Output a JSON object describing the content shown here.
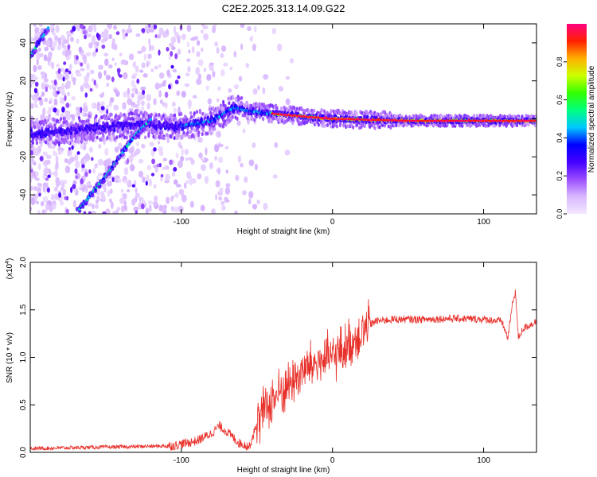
{
  "figure": {
    "title": "C2E2.2025.313.14.09.G22"
  },
  "chart_data": [
    {
      "type": "heatmap",
      "name": "spectrogram",
      "xlabel": "Height of straight line (km)",
      "ylabel": "Frequency (Hz)",
      "xlim": [
        -200,
        135
      ],
      "ylim": [
        -50,
        50
      ],
      "xticks": [
        -100,
        0,
        100
      ],
      "xtick_labels": [
        "-100",
        "0",
        "100"
      ],
      "yticks": [
        -40,
        -20,
        0,
        20,
        40
      ],
      "ytick_labels": [
        "-40",
        "-20",
        "0",
        "20",
        "40"
      ],
      "colorbar": {
        "label": "Normalized spectral amplitude",
        "range": [
          0,
          1
        ],
        "ticks": [
          0.0,
          0.2,
          0.4,
          0.6,
          0.8
        ],
        "tick_labels": [
          "0.0",
          "0.2",
          "0.4",
          "0.6",
          "0.8"
        ],
        "colormap": [
          "#f3e8ff",
          "#d9b8ff",
          "#9a4dff",
          "#4400ff",
          "#0000ff",
          "#00c8ff",
          "#00ff80",
          "#33ff00",
          "#ccff00",
          "#ffb000",
          "#ff2000",
          "#ff0080"
        ]
      },
      "features": [
        {
          "name": "main-tone",
          "points": [
            [
              -200,
              -8
            ],
            [
              -160,
              -5
            ],
            [
              -130,
              -3
            ],
            [
              -100,
              -4
            ],
            [
              -80,
              -1
            ],
            [
              -65,
              6
            ],
            [
              -55,
              4
            ],
            [
              -30,
              2
            ],
            [
              0,
              0
            ],
            [
              50,
              -1
            ],
            [
              135,
              -1
            ]
          ]
        },
        {
          "name": "rising-streak",
          "points": [
            [
              -168,
              -48
            ],
            [
              -150,
              -30
            ],
            [
              -130,
              -8
            ],
            [
              -120,
              0
            ]
          ]
        },
        {
          "name": "top-left-streak",
          "points": [
            [
              -200,
              33
            ],
            [
              -188,
              48
            ]
          ]
        }
      ]
    },
    {
      "type": "line",
      "name": "snr",
      "xlabel": "Height of straight line (km)",
      "ylabel": "SNR (10 * v/v)",
      "yscale_label_main": "(x10",
      "yscale_label_exp": "4",
      "yscale_label_end": ")",
      "xlim": [
        -200,
        135
      ],
      "ylim": [
        0.0,
        2.0
      ],
      "xticks": [
        -100,
        0,
        100
      ],
      "xtick_labels": [
        "-100",
        "0",
        "100"
      ],
      "yticks": [
        0.0,
        0.5,
        1.0,
        1.5,
        2.0
      ],
      "ytick_labels": [
        "0.0",
        "0.5",
        "1.0",
        "1.5",
        "2.0"
      ],
      "color": "#e8302a",
      "envelope": [
        [
          -200,
          0.04
        ],
        [
          -170,
          0.05
        ],
        [
          -130,
          0.06
        ],
        [
          -105,
          0.07
        ],
        [
          -90,
          0.12
        ],
        [
          -80,
          0.2
        ],
        [
          -75,
          0.28
        ],
        [
          -70,
          0.22
        ],
        [
          -62,
          0.1
        ],
        [
          -55,
          0.06
        ],
        [
          -50,
          0.3
        ],
        [
          -45,
          0.45
        ],
        [
          -40,
          0.55
        ],
        [
          -30,
          0.7
        ],
        [
          -20,
          0.85
        ],
        [
          -10,
          0.95
        ],
        [
          0,
          1.0
        ],
        [
          10,
          1.12
        ],
        [
          20,
          1.28
        ],
        [
          28,
          1.38
        ],
        [
          40,
          1.4
        ],
        [
          60,
          1.4
        ],
        [
          80,
          1.41
        ],
        [
          100,
          1.4
        ],
        [
          112,
          1.38
        ],
        [
          116,
          1.2
        ],
        [
          119,
          1.55
        ],
        [
          121,
          1.7
        ],
        [
          123,
          1.2
        ],
        [
          126,
          1.3
        ],
        [
          135,
          1.38
        ]
      ]
    }
  ]
}
